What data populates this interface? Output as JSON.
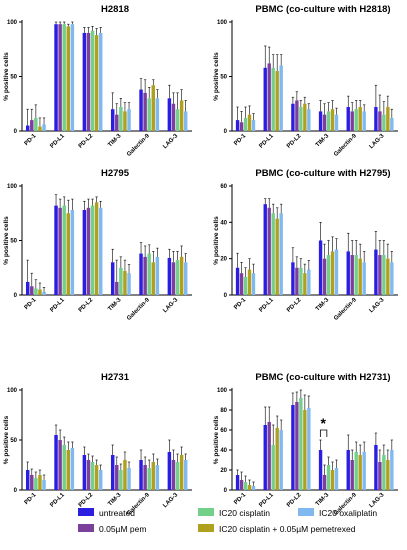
{
  "series_colors": [
    "#2b1ee0",
    "#7c3f9c",
    "#73cf8a",
    "#b0a020",
    "#7fb9f0"
  ],
  "legend": {
    "items": [
      {
        "label": "untreated",
        "color": "#2b1ee0"
      },
      {
        "label": "IC20 cisplatin",
        "color": "#73cf8a"
      },
      {
        "label": "IC20 oxaliplatin",
        "color": "#7fb9f0"
      },
      {
        "label": "0.05µM pem",
        "color": "#7c3f9c"
      },
      {
        "label": "IC20 cisplatin + 0.05µM pemetrexed",
        "color": "#b0a020"
      }
    ]
  },
  "chart_data": [
    {
      "type": "bar",
      "title": "H2818",
      "ylabel": "% positive cells",
      "ylim": [
        0,
        100
      ],
      "yticks": [
        "0",
        "50",
        "100"
      ],
      "ytick_values": [
        0,
        50,
        100
      ],
      "categories": [
        "PD-1",
        "PD-L1",
        "PD-L2",
        "TIM-3",
        "Galectin-9",
        "LAG-3"
      ],
      "series": [
        {
          "values": [
            5,
            98,
            90,
            20,
            38,
            30
          ],
          "errors": [
            15,
            2,
            5,
            15,
            10,
            12
          ]
        },
        {
          "values": [
            10,
            98,
            90,
            15,
            35,
            25
          ],
          "errors": [
            10,
            2,
            5,
            10,
            12,
            10
          ]
        },
        {
          "values": [
            12,
            98,
            92,
            22,
            30,
            20
          ],
          "errors": [
            12,
            2,
            4,
            8,
            10,
            15
          ]
        },
        {
          "values": [
            4,
            96,
            88,
            18,
            42,
            28
          ],
          "errors": [
            8,
            2,
            6,
            8,
            5,
            10
          ]
        },
        {
          "values": [
            6,
            98,
            90,
            20,
            30,
            18
          ],
          "errors": [
            6,
            2,
            5,
            6,
            8,
            10
          ]
        }
      ]
    },
    {
      "type": "bar",
      "title": "PBMC (co-culture with H2818)",
      "ylabel": "% positive cells",
      "ylim": [
        0,
        100
      ],
      "yticks": [
        "0",
        "50",
        "100"
      ],
      "ytick_values": [
        0,
        50,
        100
      ],
      "categories": [
        "PD-1",
        "PD-L1",
        "PD-L2",
        "TIM-3",
        "Galectin-9",
        "LAG-3"
      ],
      "series": [
        {
          "values": [
            10,
            58,
            25,
            18,
            22,
            22
          ],
          "errors": [
            12,
            20,
            6,
            10,
            10,
            20
          ]
        },
        {
          "values": [
            8,
            62,
            28,
            15,
            18,
            18
          ],
          "errors": [
            10,
            15,
            8,
            10,
            8,
            15
          ]
        },
        {
          "values": [
            12,
            58,
            22,
            18,
            20,
            15
          ],
          "errors": [
            10,
            12,
            6,
            8,
            8,
            12
          ]
        },
        {
          "values": [
            15,
            55,
            25,
            20,
            22,
            22
          ],
          "errors": [
            8,
            15,
            6,
            8,
            6,
            10
          ]
        },
        {
          "values": [
            10,
            60,
            20,
            15,
            18,
            12
          ],
          "errors": [
            6,
            10,
            5,
            6,
            6,
            8
          ]
        }
      ]
    },
    {
      "type": "bar",
      "title": "H2795",
      "ylabel": "% positive cells",
      "ylim": [
        0,
        100
      ],
      "yticks": [
        "0",
        "50",
        "100"
      ],
      "ytick_values": [
        0,
        50,
        100
      ],
      "categories": [
        "PD-1",
        "PD-L1",
        "PD-L2",
        "TIM-3",
        "Galectin-9",
        "LAG-3"
      ],
      "series": [
        {
          "values": [
            12,
            82,
            78,
            30,
            38,
            34
          ],
          "errors": [
            20,
            10,
            8,
            12,
            10,
            8
          ]
        },
        {
          "values": [
            8,
            80,
            80,
            12,
            35,
            30
          ],
          "errors": [
            12,
            8,
            8,
            20,
            10,
            10
          ]
        },
        {
          "values": [
            6,
            82,
            82,
            25,
            38,
            32
          ],
          "errors": [
            8,
            8,
            6,
            10,
            8,
            8
          ]
        },
        {
          "values": [
            5,
            75,
            85,
            22,
            30,
            35
          ],
          "errors": [
            6,
            12,
            5,
            10,
            10,
            10
          ]
        },
        {
          "values": [
            3,
            78,
            80,
            20,
            35,
            30
          ],
          "errors": [
            4,
            10,
            6,
            8,
            8,
            8
          ]
        }
      ]
    },
    {
      "type": "bar",
      "title": "PBMC (co-culture with H2795)",
      "ylabel": "% positive cells",
      "ylim": [
        0,
        60
      ],
      "yticks": [
        "0",
        "20",
        "40",
        "60"
      ],
      "ytick_values": [
        0,
        20,
        40,
        60
      ],
      "categories": [
        "PD-1",
        "PD-L1",
        "PD-L2",
        "TIM-3",
        "Galectin-9",
        "LAG-3"
      ],
      "series": [
        {
          "values": [
            15,
            50,
            18,
            30,
            24,
            25
          ],
          "errors": [
            8,
            3,
            8,
            10,
            10,
            10
          ]
        },
        {
          "values": [
            12,
            48,
            15,
            20,
            22,
            22
          ],
          "errors": [
            6,
            5,
            6,
            8,
            8,
            8
          ]
        },
        {
          "values": [
            10,
            45,
            15,
            22,
            22,
            22
          ],
          "errors": [
            5,
            5,
            5,
            8,
            8,
            8
          ]
        },
        {
          "values": [
            14,
            42,
            12,
            24,
            20,
            20
          ],
          "errors": [
            6,
            6,
            5,
            8,
            8,
            8
          ]
        },
        {
          "values": [
            12,
            45,
            14,
            25,
            18,
            18
          ],
          "errors": [
            5,
            5,
            5,
            6,
            6,
            6
          ]
        }
      ]
    },
    {
      "type": "bar",
      "title": "H2731",
      "ylabel": "% positive cells",
      "ylim": [
        0,
        100
      ],
      "yticks": [
        "0",
        "50",
        "100"
      ],
      "ytick_values": [
        0,
        50,
        100
      ],
      "categories": [
        "PD-1",
        "PD-L1",
        "PD-L2",
        "TIM-3",
        "Galectin-9",
        "LAG-3"
      ],
      "series": [
        {
          "values": [
            20,
            55,
            35,
            35,
            30,
            38
          ],
          "errors": [
            8,
            10,
            8,
            10,
            10,
            12
          ]
        },
        {
          "values": [
            15,
            50,
            30,
            25,
            25,
            30
          ],
          "errors": [
            6,
            10,
            6,
            8,
            8,
            10
          ]
        },
        {
          "values": [
            12,
            45,
            28,
            20,
            22,
            28
          ],
          "errors": [
            6,
            8,
            6,
            6,
            8,
            8
          ]
        },
        {
          "values": [
            15,
            40,
            25,
            30,
            28,
            35
          ],
          "errors": [
            5,
            8,
            5,
            8,
            8,
            8
          ]
        },
        {
          "values": [
            10,
            42,
            20,
            22,
            25,
            30
          ],
          "errors": [
            5,
            6,
            5,
            6,
            6,
            6
          ]
        }
      ]
    },
    {
      "type": "bar",
      "title": "PBMC (co-culture with H2731)",
      "ylabel": "% positive cells",
      "ylim": [
        0,
        100
      ],
      "yticks": [
        "0",
        "20",
        "40",
        "60",
        "80",
        "100"
      ],
      "ytick_values": [
        0,
        20,
        40,
        60,
        80,
        100
      ],
      "categories": [
        "PD-1",
        "PD-L1",
        "PD-L2",
        "TIM-3",
        "Galectin-9",
        "LAG-3"
      ],
      "annotation": {
        "text": "*",
        "category": "TIM-3"
      },
      "series": [
        {
          "values": [
            15,
            65,
            85,
            40,
            40,
            45
          ],
          "errors": [
            5,
            18,
            12,
            10,
            15,
            12
          ]
        },
        {
          "values": [
            10,
            68,
            88,
            15,
            30,
            28
          ],
          "errors": [
            8,
            15,
            10,
            10,
            10,
            12
          ]
        },
        {
          "values": [
            8,
            45,
            92,
            25,
            38,
            35
          ],
          "errors": [
            6,
            20,
            8,
            8,
            10,
            10
          ]
        },
        {
          "values": [
            5,
            62,
            80,
            20,
            35,
            30
          ],
          "errors": [
            5,
            12,
            15,
            8,
            10,
            10
          ]
        },
        {
          "values": [
            4,
            60,
            82,
            22,
            38,
            40
          ],
          "errors": [
            4,
            10,
            12,
            8,
            10,
            10
          ]
        }
      ]
    }
  ]
}
